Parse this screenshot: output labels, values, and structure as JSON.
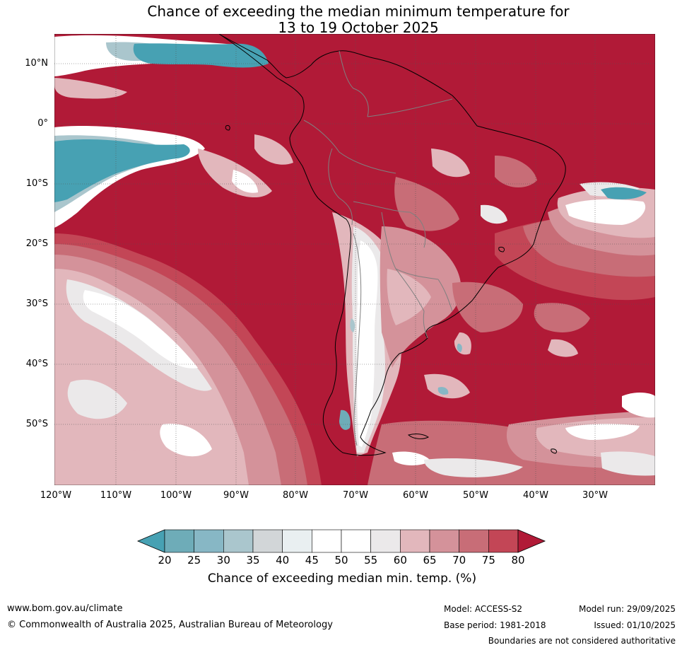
{
  "title": {
    "line1": "Chance of exceeding the median minimum temperature for",
    "line2": "13 to 19 October 2025"
  },
  "map": {
    "lat_labels": [
      "10°N",
      "0°",
      "10°S",
      "20°S",
      "30°S",
      "40°S",
      "50°S"
    ],
    "lon_labels": [
      "120°W",
      "110°W",
      "100°W",
      "90°W",
      "80°W",
      "70°W",
      "60°W",
      "50°W",
      "40°W",
      "30°W"
    ],
    "colors": {
      "c80": "#b11a37",
      "c75": "#c34656",
      "c70": "#c86d77",
      "c65": "#d4929a",
      "c60": "#e2b7bc",
      "c55": "#ebe9ea",
      "c50": "#ffffff",
      "c40": "#e9eff1",
      "c35": "#d2d6d8",
      "c30": "#aac6cd",
      "c25": "#87b7c5",
      "c20": "#6eacb8",
      "c15": "#47a1b3",
      "land_edge": "#000000",
      "border": "#808080"
    }
  },
  "colorbar": {
    "ticks": [
      "20",
      "25",
      "30",
      "35",
      "40",
      "45",
      "50",
      "55",
      "60",
      "65",
      "70",
      "75",
      "80"
    ],
    "colors": [
      "#6eacb8",
      "#87b7c5",
      "#aac6cd",
      "#d2d6d8",
      "#e9eff1",
      "#ffffff",
      "#ffffff",
      "#ebe9ea",
      "#e2b7bc",
      "#d4929a",
      "#c86d77",
      "#c34656"
    ],
    "under_color": "#47a1b3",
    "over_color": "#b11a37",
    "label": "Chance of exceeding median min. temp. (%)"
  },
  "footer": {
    "url": "www.bom.gov.au/climate",
    "copyright": "© Commonwealth of Australia 2025, Australian Bureau of Meteorology",
    "model": "Model: ACCESS-S2",
    "base_period": "Base period: 1981-2018",
    "model_run": "Model run: 29/09/2025",
    "issued": "Issued: 01/10/2025",
    "disclaimer": "Boundaries are not considered authoritative"
  }
}
